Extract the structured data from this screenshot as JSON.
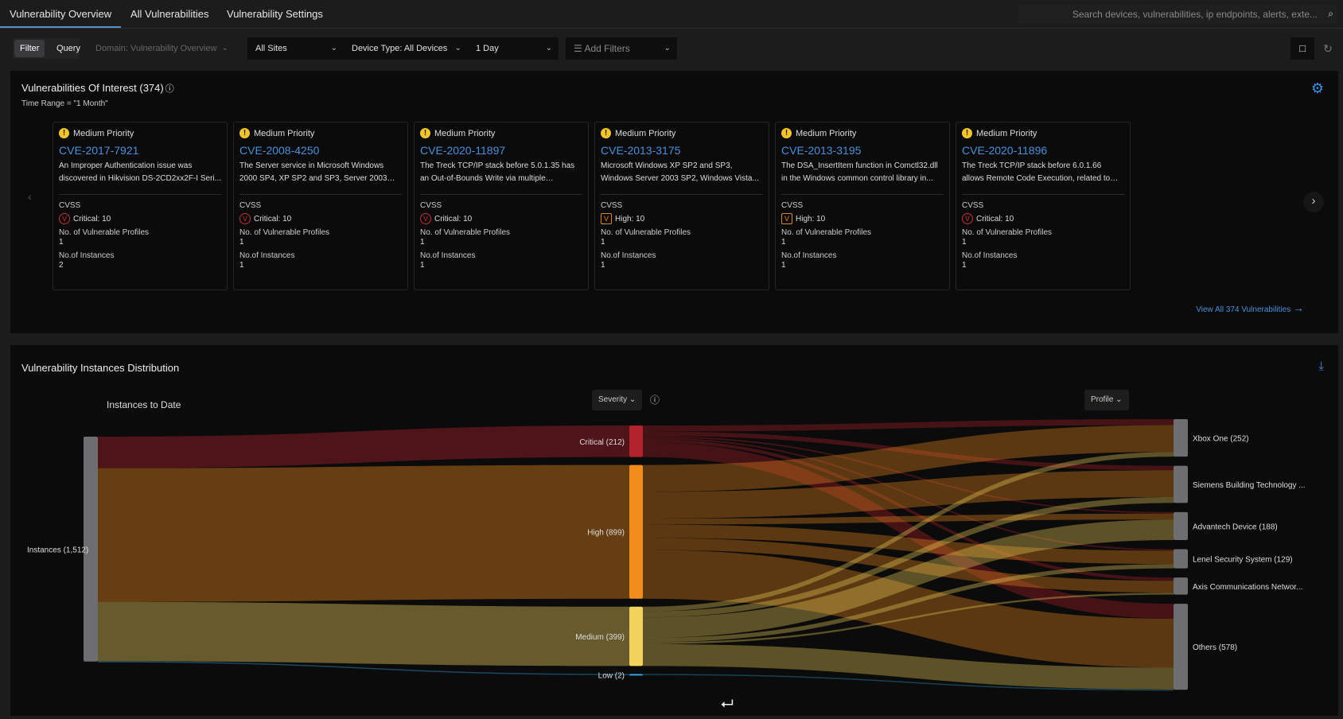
{
  "tabs": [
    {
      "label": "Vulnerability Overview",
      "active": true
    },
    {
      "label": "All Vulnerabilities"
    },
    {
      "label": "Vulnerability Settings"
    }
  ],
  "search": {
    "placeholder": "Search devices, vulnerabilities, ip endpoints, alerts, exte..."
  },
  "filterbar": {
    "filter": "Filter",
    "query": "Query",
    "domain": "Domain: Vulnerability Overview",
    "sites": "All Sites",
    "device_type": "Device Type: All Devices",
    "time": "1 Day",
    "add_filters": "Add Filters"
  },
  "interest": {
    "title": "Vulnerabilities Of Interest (374)",
    "time_range": "Time Range = \"1 Month\"",
    "view_all": "View All 374 Vulnerabilities",
    "cards": [
      {
        "priority": "Medium Priority",
        "cve": "CVE-2017-7921",
        "desc": "An Improper Authentication issue was discovered in Hikvision DS-2CD2xx2F-I Seri...",
        "cvss_label": "CVSS",
        "severity": "crit",
        "cvss": "Critical: 10",
        "profiles_label": "No. of Vulnerable Profiles",
        "profiles": "1",
        "instances_label": "No.of Instances",
        "instances": "2"
      },
      {
        "priority": "Medium Priority",
        "cve": "CVE-2008-4250",
        "desc": "The Server service in Microsoft Windows 2000 SP4, XP SP2 and SP3, Server 2003 SP1...",
        "cvss_label": "CVSS",
        "severity": "crit",
        "cvss": "Critical: 10",
        "profiles_label": "No. of Vulnerable Profiles",
        "profiles": "1",
        "instances_label": "No.of Instances",
        "instances": "1"
      },
      {
        "priority": "Medium Priority",
        "cve": "CVE-2020-11897",
        "desc": "The Treck TCP/IP stack before 5.0.1.35 has an Out-of-Bounds Write via multiple malformed...",
        "cvss_label": "CVSS",
        "severity": "crit",
        "cvss": "Critical: 10",
        "profiles_label": "No. of Vulnerable Profiles",
        "profiles": "1",
        "instances_label": "No.of Instances",
        "instances": "1"
      },
      {
        "priority": "Medium Priority",
        "cve": "CVE-2013-3175",
        "desc": "Microsoft Windows XP SP2 and SP3, Windows Server 2003 SP2, Windows Vista...",
        "cvss_label": "CVSS",
        "severity": "high",
        "cvss": "High: 10",
        "profiles_label": "No. of Vulnerable Profiles",
        "profiles": "1",
        "instances_label": "No.of Instances",
        "instances": "1"
      },
      {
        "priority": "Medium Priority",
        "cve": "CVE-2013-3195",
        "desc": "The DSA_InsertItem function in Comctl32.dll in the Windows common control library in...",
        "cvss_label": "CVSS",
        "severity": "high",
        "cvss": "High: 10",
        "profiles_label": "No. of Vulnerable Profiles",
        "profiles": "1",
        "instances_label": "No.of Instances",
        "instances": "1"
      },
      {
        "priority": "Medium Priority",
        "cve": "CVE-2020-11896",
        "desc": "The Treck TCP/IP stack before 6.0.1.66 allows Remote Code Execution, related to IPv4...",
        "cvss_label": "CVSS",
        "severity": "crit",
        "cvss": "Critical: 10",
        "profiles_label": "No. of Vulnerable Profiles",
        "profiles": "1",
        "instances_label": "No.of Instances",
        "instances": "1"
      }
    ]
  },
  "distribution": {
    "title": "Vulnerability Instances Distribution",
    "subtitle": "Instances to Date",
    "severity_select": "Severity",
    "profile_select": "Profile"
  },
  "colors": {
    "critical": "#b3232c",
    "high": "#f28d1c",
    "medium": "#f3d35c",
    "low": "#2aa8e0",
    "node": "#6e6e70",
    "accent": "#4a90d9"
  },
  "chart_data": {
    "type": "sankey",
    "source": {
      "label": "Instances (1,512)",
      "value": 1512
    },
    "severities": [
      {
        "key": "critical",
        "label": "Critical  (212)",
        "value": 212
      },
      {
        "key": "high",
        "label": "High  (899)",
        "value": 899
      },
      {
        "key": "medium",
        "label": "Medium  (399)",
        "value": 399
      },
      {
        "key": "low",
        "label": "Low  (2)",
        "value": 2
      }
    ],
    "profiles": [
      {
        "label": "Xbox One  (252)",
        "value": 252
      },
      {
        "label": "Siemens Building Technology ...",
        "value": 250
      },
      {
        "label": "Advantech Device  (188)",
        "value": 188
      },
      {
        "label": "Lenel Security System  (129)",
        "value": 129
      },
      {
        "label": "Axis Communications Networ...",
        "value": 115
      },
      {
        "label": "Others  (578)",
        "value": 578
      }
    ],
    "flows": {
      "critical": [
        40,
        30,
        10,
        10,
        22,
        100
      ],
      "high": [
        180,
        180,
        40,
        90,
        80,
        329
      ],
      "medium": [
        32,
        40,
        138,
        29,
        13,
        147
      ],
      "low": [
        0,
        0,
        0,
        0,
        0,
        2
      ]
    }
  }
}
